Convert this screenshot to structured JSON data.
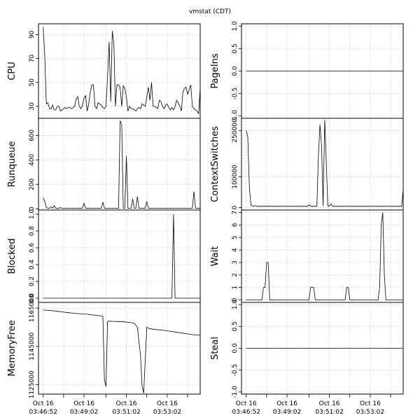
{
  "chart_data": {
    "type": "line",
    "title": "vmstat (CDT)",
    "x_tick_labels": [
      {
        "line1": "Oct 16",
        "line2": "03:46:52"
      },
      {
        "line1": "Oct 16",
        "line2": "03:49:02"
      },
      {
        "line1": "Oct 16",
        "line2": "03:51:02"
      },
      {
        "line1": "Oct 16",
        "line2": "03:53:02"
      }
    ],
    "x_range": [
      -3,
      100
    ],
    "x_major_positions": [
      0,
      26,
      53,
      79
    ],
    "x_minor_positions": [
      13,
      40,
      66,
      92
    ],
    "grid": true,
    "panels": [
      {
        "ylabel": "CPU",
        "ylim": [
          20,
          99
        ],
        "yticks": [
          30,
          50,
          70,
          90
        ],
        "ytick_labels": [
          "30",
          "50",
          "70",
          "90"
        ],
        "x": [
          0,
          1,
          2,
          3,
          4,
          5,
          6,
          7,
          8,
          9,
          10,
          11,
          12,
          13,
          14,
          15,
          16,
          17,
          18,
          19,
          20,
          21,
          22,
          23,
          24,
          25,
          26,
          27,
          28,
          29,
          30,
          31,
          32,
          33,
          34,
          35,
          36,
          37,
          38,
          39,
          40,
          41,
          42,
          43,
          44,
          45,
          46,
          47,
          48,
          49,
          50,
          51,
          52,
          53,
          54,
          55,
          56,
          57,
          58,
          59,
          60,
          61,
          62,
          63,
          64,
          65,
          66,
          67,
          68,
          69,
          70,
          71,
          72,
          73,
          74,
          75,
          76,
          77,
          78,
          79,
          80,
          81,
          82,
          83,
          84,
          85,
          86,
          87,
          88,
          89,
          90,
          91,
          92,
          93,
          94,
          95,
          96,
          97,
          98,
          99,
          100
        ],
        "y": [
          96,
          72,
          32,
          33,
          28,
          28,
          31,
          27,
          27,
          30,
          30,
          26,
          27,
          28,
          29,
          28,
          29,
          29,
          28,
          29,
          30,
          36,
          38,
          30,
          28,
          31,
          37,
          39,
          26,
          32,
          42,
          48,
          48,
          30,
          28,
          33,
          32,
          31,
          29,
          28,
          30,
          55,
          84,
          34,
          93,
          82,
          30,
          48,
          48,
          46,
          30,
          47,
          45,
          38,
          26,
          30,
          28,
          28,
          27,
          26,
          28,
          29,
          28,
          32,
          31,
          30,
          38,
          46,
          35,
          50,
          30,
          30,
          29,
          28,
          35,
          34,
          30,
          28,
          31,
          32,
          29,
          27,
          29,
          27,
          30,
          35,
          33,
          30,
          26,
          42,
          45,
          46,
          40,
          44,
          48,
          30,
          28,
          27,
          26,
          24,
          45
        ]
      },
      {
        "ylabel": "Runqueue",
        "ylim": [
          -10,
          740
        ],
        "yticks": [
          0,
          200,
          400,
          600
        ],
        "ytick_labels": [
          "0",
          "200",
          "400",
          "600"
        ],
        "x": [
          0,
          1,
          2,
          3,
          4,
          5,
          6,
          7,
          8,
          9,
          10,
          11,
          12,
          13,
          14,
          15,
          16,
          17,
          18,
          19,
          20,
          21,
          22,
          23,
          24,
          25,
          26,
          27,
          28,
          29,
          30,
          31,
          32,
          33,
          34,
          35,
          36,
          37,
          38,
          39,
          40,
          41,
          42,
          43,
          44,
          45,
          46,
          47,
          48,
          49,
          50,
          51,
          52,
          53,
          54,
          55,
          56,
          57,
          58,
          59,
          60,
          61,
          62,
          63,
          64,
          65,
          66,
          67,
          68,
          69,
          70,
          71,
          72,
          73,
          74,
          75,
          76,
          77,
          78,
          79,
          80,
          81,
          82,
          83,
          84,
          85,
          86,
          87,
          88,
          89,
          90,
          91,
          92,
          93,
          94,
          95,
          96,
          97,
          98,
          99,
          100
        ],
        "y": [
          90,
          60,
          10,
          5,
          5,
          15,
          5,
          25,
          5,
          5,
          5,
          10,
          5,
          5,
          5,
          5,
          5,
          5,
          5,
          5,
          5,
          5,
          5,
          5,
          5,
          5,
          45,
          5,
          5,
          5,
          5,
          5,
          5,
          5,
          5,
          5,
          5,
          5,
          55,
          5,
          5,
          5,
          5,
          5,
          5,
          5,
          5,
          5,
          5,
          720,
          690,
          5,
          5,
          430,
          5,
          5,
          5,
          80,
          5,
          5,
          100,
          5,
          5,
          5,
          5,
          5,
          60,
          5,
          5,
          5,
          5,
          5,
          5,
          5,
          5,
          5,
          5,
          5,
          5,
          5,
          5,
          5,
          5,
          5,
          5,
          5,
          5,
          5,
          5,
          5,
          5,
          5,
          5,
          5,
          5,
          5,
          140,
          5,
          5,
          5,
          5
        ]
      },
      {
        "ylabel": "Blocked",
        "ylim": [
          -0.05,
          1.05
        ],
        "yticks": [
          0,
          0.2,
          0.4,
          0.6,
          0.8,
          1.0
        ],
        "ytick_labels": [
          "0.0",
          "0.2",
          "0.4",
          "0.6",
          "0.8",
          "1.0"
        ],
        "x": [
          0,
          82,
          83,
          84,
          100
        ],
        "y": [
          0,
          0,
          1,
          0,
          0
        ]
      },
      {
        "ylabel": "MemoryFree",
        "ylim": [
          1120000,
          1168000
        ],
        "yticks": [
          1125000,
          1145000,
          1165000
        ],
        "ytick_labels": [
          "1125000",
          "1145000",
          "1165000"
        ],
        "x": [
          0,
          4,
          8,
          12,
          16,
          20,
          24,
          28,
          32,
          36,
          38,
          39,
          40,
          41,
          42,
          44,
          48,
          52,
          56,
          58,
          60,
          62,
          63,
          64,
          65,
          66,
          67,
          68,
          72,
          76,
          80,
          84,
          88,
          92,
          96,
          100
        ],
        "y": [
          1164000,
          1163800,
          1163500,
          1163000,
          1162600,
          1162300,
          1162000,
          1161800,
          1161400,
          1161000,
          1160800,
          1127000,
          1124000,
          1158000,
          1158200,
          1158100,
          1158000,
          1157800,
          1157400,
          1157000,
          1155000,
          1140000,
          1124000,
          1120500,
          1138000,
          1155000,
          1154500,
          1154200,
          1153800,
          1153500,
          1153000,
          1152500,
          1152000,
          1151500,
          1151000,
          1150800
        ]
      },
      {
        "ylabel": "PageIns",
        "ylim": [
          -1.05,
          1.05
        ],
        "yticks": [
          -1.0,
          -0.5,
          0.0,
          0.5,
          1.0
        ],
        "ytick_labels": [
          "-1.0",
          "-0.5",
          "0.0",
          "0.5",
          "1.0"
        ],
        "x": [
          0,
          100
        ],
        "y": [
          0,
          0
        ]
      },
      {
        "ylabel": "ContextSwitches",
        "ylim": [
          -8000,
          290000
        ],
        "yticks": [
          0,
          100000,
          250000
        ],
        "ytick_labels": [
          "0",
          "100000",
          "250000"
        ],
        "x": [
          0,
          1,
          2,
          3,
          4,
          5,
          6,
          7,
          8,
          9,
          10,
          11,
          12,
          13,
          14,
          15,
          16,
          17,
          18,
          19,
          20,
          21,
          22,
          23,
          24,
          25,
          26,
          27,
          28,
          29,
          30,
          31,
          32,
          33,
          34,
          35,
          36,
          37,
          38,
          39,
          40,
          41,
          42,
          43,
          44,
          45,
          46,
          47,
          48,
          49,
          50,
          51,
          52,
          53,
          54,
          55,
          56,
          57,
          58,
          59,
          60,
          61,
          62,
          63,
          64,
          65,
          66,
          67,
          68,
          69,
          70,
          71,
          72,
          73,
          74,
          75,
          76,
          77,
          78,
          79,
          80,
          81,
          82,
          83,
          84,
          85,
          86,
          87,
          88,
          89,
          90,
          91,
          92,
          93,
          94,
          95,
          96,
          97,
          98,
          99,
          100
        ],
        "y": [
          250000,
          230000,
          70000,
          7000,
          5000,
          5000,
          6000,
          4000,
          4000,
          4000,
          4000,
          4000,
          4000,
          4000,
          5000,
          4000,
          4000,
          4000,
          4000,
          4000,
          4000,
          4000,
          4000,
          4000,
          4000,
          4000,
          4000,
          4000,
          4000,
          4000,
          4000,
          4000,
          4000,
          4000,
          4000,
          5000,
          4000,
          4000,
          4000,
          4000,
          9000,
          4000,
          4000,
          4000,
          4000,
          4000,
          170000,
          270000,
          200000,
          5000,
          285000,
          150000,
          5000,
          5000,
          12000,
          4000,
          4000,
          4000,
          4000,
          4000,
          4000,
          4000,
          4000,
          4000,
          4000,
          4000,
          4000,
          4000,
          4000,
          4000,
          4000,
          4000,
          4000,
          4000,
          4000,
          4000,
          4000,
          4000,
          4000,
          4000,
          4000,
          4000,
          4000,
          4000,
          4000,
          4000,
          4000,
          4000,
          4000,
          4000,
          4000,
          4000,
          4000,
          4000,
          4000,
          4000,
          4000,
          4000,
          4000,
          4000,
          60000
        ]
      },
      {
        "ylabel": "Wait",
        "ylim": [
          -0.2,
          7.2
        ],
        "yticks": [
          0,
          1,
          2,
          3,
          4,
          5,
          6,
          7
        ],
        "ytick_labels": [
          "0",
          "1",
          "2",
          "3",
          "4",
          "5",
          "6",
          "7"
        ],
        "x": [
          0,
          10,
          11,
          12,
          13,
          14,
          15,
          40,
          41,
          42,
          43,
          44,
          63,
          64,
          65,
          66,
          84,
          85,
          86,
          87,
          88,
          89,
          100
        ],
        "y": [
          0,
          0,
          1,
          1,
          3,
          3,
          0,
          0,
          1,
          1,
          1,
          0,
          0,
          1,
          1,
          0,
          0,
          1,
          6,
          7,
          2,
          0,
          0
        ]
      },
      {
        "ylabel": "Steal",
        "ylim": [
          -1.05,
          1.05
        ],
        "yticks": [
          -1.0,
          -0.5,
          0.0,
          0.5,
          1.0
        ],
        "ytick_labels": [
          "-1.0",
          "-0.5",
          "0.0",
          "0.5",
          "1.0"
        ],
        "x": [
          0,
          100
        ],
        "y": [
          0,
          0
        ]
      }
    ]
  }
}
